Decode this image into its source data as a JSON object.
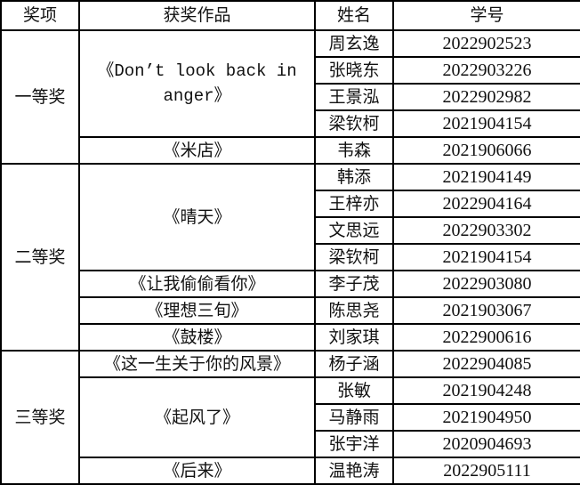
{
  "headers": [
    "奖项",
    "获奖作品",
    "姓名",
    "学号"
  ],
  "groups": [
    {
      "award": "一等奖",
      "works": [
        {
          "title": "《Don’t look back in anger》",
          "mono": true,
          "members": [
            {
              "name": "周玄逸",
              "id": "2022902523"
            },
            {
              "name": "张晓东",
              "id": "2022903226"
            },
            {
              "name": "王景泓",
              "id": "2022902982"
            },
            {
              "name": "梁钦柯",
              "id": "2021904154"
            }
          ]
        },
        {
          "title": "《米店》",
          "members": [
            {
              "name": "韦森",
              "id": "2021906066"
            }
          ]
        }
      ]
    },
    {
      "award": "二等奖",
      "works": [
        {
          "title": "《晴天》",
          "members": [
            {
              "name": "韩添",
              "id": "2021904149"
            },
            {
              "name": "王梓亦",
              "id": "2022904164"
            },
            {
              "name": "文思远",
              "id": "2022903302"
            },
            {
              "name": "梁钦柯",
              "id": "2021904154"
            }
          ]
        },
        {
          "title": "《让我偷偷看你》",
          "members": [
            {
              "name": "李子茂",
              "id": "2022903080"
            }
          ]
        },
        {
          "title": "《理想三旬》",
          "members": [
            {
              "name": "陈思尧",
              "id": "2021903067"
            }
          ]
        },
        {
          "title": "《鼓楼》",
          "members": [
            {
              "name": "刘家琪",
              "id": "2022900616"
            }
          ]
        }
      ]
    },
    {
      "award": "三等奖",
      "works": [
        {
          "title": "《这一生关于你的风景》",
          "members": [
            {
              "name": "杨子涵",
              "id": "2022904085"
            }
          ]
        },
        {
          "title": "《起风了》",
          "members": [
            {
              "name": "张敏",
              "id": "2021904248"
            },
            {
              "name": "马静雨",
              "id": "2021904950"
            },
            {
              "name": "张宇洋",
              "id": "2020904693"
            }
          ]
        },
        {
          "title": "《后来》",
          "members": [
            {
              "name": "温艳涛",
              "id": "2022905111"
            }
          ]
        }
      ]
    }
  ]
}
